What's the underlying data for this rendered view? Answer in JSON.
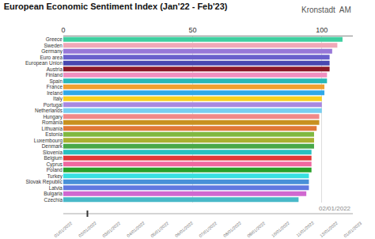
{
  "chart_data": {
    "type": "bar",
    "orientation": "horizontal",
    "title": "European Economic Sentiment Index (Jan'22 - Feb'23)",
    "annotations": [
      "Kronstadt  AM",
      "02/01/2022"
    ],
    "timeline_labels": [
      "01/01/2022",
      "02/01/2022",
      "03/01/2022",
      "04/01/2022",
      "05/01/2022",
      "06/01/2022",
      "07/01/2022",
      "08/01/2022",
      "09/01/2022",
      "10/01/2022",
      "11/01/2022",
      "12/01/2022",
      "01/01/2023"
    ],
    "categories": [
      "Greece",
      "Sweden",
      "Germany",
      "Euro area",
      "European Union",
      "Austria",
      "Finland",
      "Spain",
      "France",
      "Ireland",
      "Italy",
      "Portugal",
      "Netherlands",
      "Hungary",
      "Romania",
      "Lithuania",
      "Estonia",
      "Luxembourg",
      "Denmark",
      "Slovenia",
      "Belgium",
      "Cyprus",
      "Poland",
      "Turkey",
      "Slovak Republic",
      "Latvia",
      "Bulgaria",
      "Czechia"
    ],
    "values": [
      108,
      106,
      104,
      103,
      103,
      103,
      102,
      102,
      101,
      101,
      100,
      100,
      100,
      99,
      99,
      98,
      97,
      97,
      97,
      96,
      96,
      96,
      96,
      95,
      95,
      95,
      94,
      91
    ],
    "colors": [
      "#3ecfa0",
      "#f0a8b8",
      "#9878d8",
      "#6a60cc",
      "#4848b0",
      "#8b1a28",
      "#f090c0",
      "#28b8b8",
      "#f0a030",
      "#30a8e8",
      "#f8d020",
      "#a888e0",
      "#78cef0",
      "#f08888",
      "#c89020",
      "#e07838",
      "#80b840",
      "#a8b030",
      "#48a848",
      "#28c0c0",
      "#e03838",
      "#f068a0",
      "#28a028",
      "#38e0e0",
      "#4890d8",
      "#6078e0",
      "#d068d0",
      "#48b8c8"
    ],
    "xlim": [
      0,
      112
    ],
    "xticks": [
      0,
      50,
      100
    ],
    "grid": true
  }
}
